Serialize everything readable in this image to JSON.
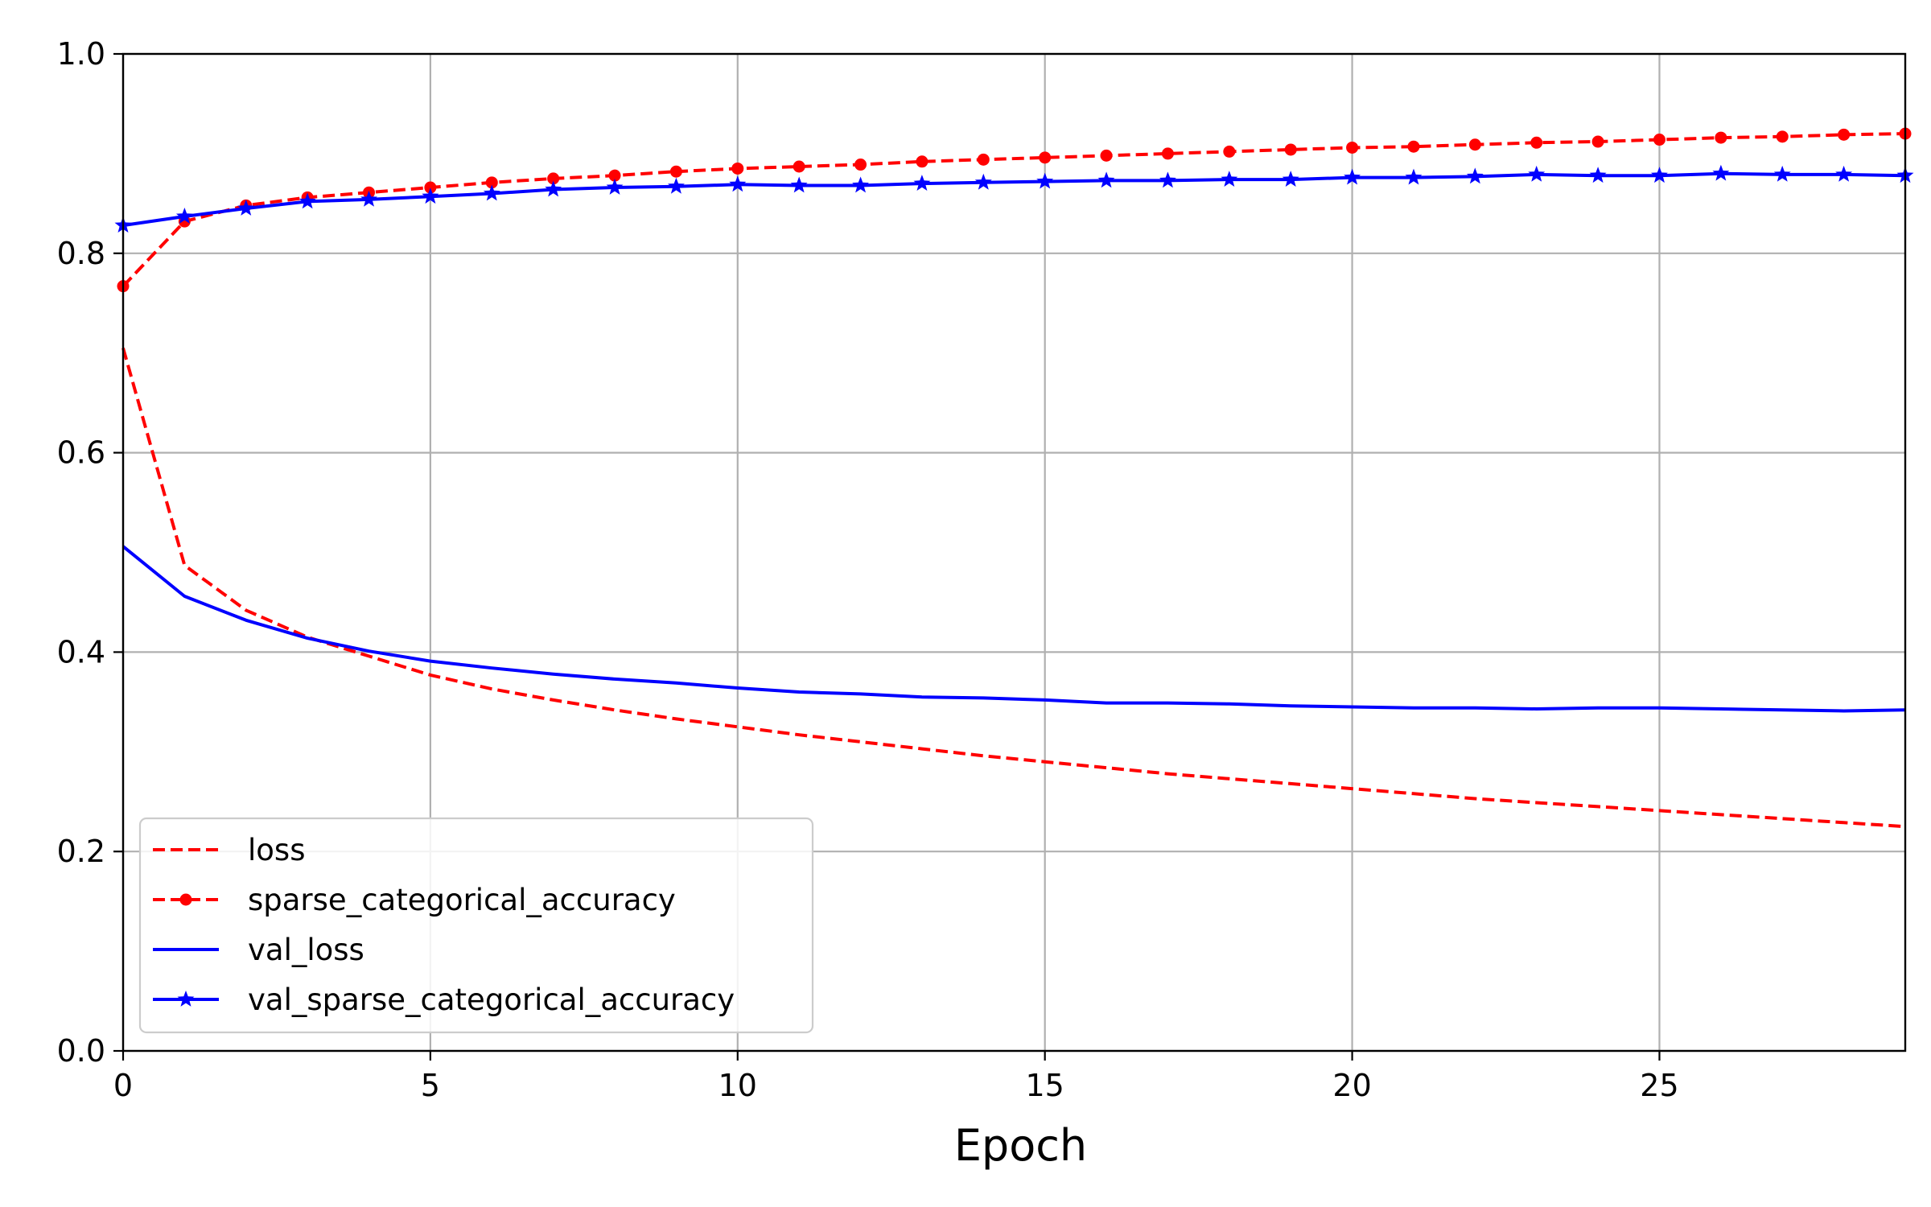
{
  "chart_data": {
    "type": "line",
    "title": "",
    "xlabel": "Epoch",
    "ylabel": "",
    "xlim": [
      0,
      29
    ],
    "ylim": [
      0,
      1
    ],
    "x_ticks": [
      0,
      5,
      10,
      15,
      20,
      25
    ],
    "y_ticks": [
      0.0,
      0.2,
      0.4,
      0.6,
      0.8,
      1.0
    ],
    "x_tick_labels": [
      "0",
      "5",
      "10",
      "15",
      "20",
      "25"
    ],
    "y_tick_labels": [
      "0.0",
      "0.2",
      "0.4",
      "0.6",
      "0.8",
      "1.0"
    ],
    "grid": true,
    "legend_position": "lower-left",
    "x": [
      0,
      1,
      2,
      3,
      4,
      5,
      6,
      7,
      8,
      9,
      10,
      11,
      12,
      13,
      14,
      15,
      16,
      17,
      18,
      19,
      20,
      21,
      22,
      23,
      24,
      25,
      26,
      27,
      28,
      29
    ],
    "series": [
      {
        "name": "loss",
        "color": "#ff0000",
        "line_style": "dashed",
        "marker": "none",
        "values": [
          0.705,
          0.487,
          0.442,
          0.415,
          0.396,
          0.377,
          0.363,
          0.352,
          0.342,
          0.333,
          0.325,
          0.317,
          0.31,
          0.303,
          0.296,
          0.29,
          0.284,
          0.278,
          0.273,
          0.268,
          0.263,
          0.258,
          0.253,
          0.249,
          0.245,
          0.241,
          0.237,
          0.233,
          0.229,
          0.225
        ]
      },
      {
        "name": "sparse_categorical_accuracy",
        "color": "#ff0000",
        "line_style": "dashed",
        "marker": "dot",
        "values": [
          0.767,
          0.832,
          0.848,
          0.856,
          0.861,
          0.866,
          0.871,
          0.875,
          0.878,
          0.882,
          0.885,
          0.887,
          0.889,
          0.892,
          0.894,
          0.896,
          0.898,
          0.9,
          0.902,
          0.904,
          0.906,
          0.907,
          0.909,
          0.911,
          0.912,
          0.914,
          0.916,
          0.917,
          0.919,
          0.92
        ]
      },
      {
        "name": "val_loss",
        "color": "#0000ff",
        "line_style": "solid",
        "marker": "none",
        "values": [
          0.506,
          0.456,
          0.432,
          0.414,
          0.401,
          0.391,
          0.384,
          0.378,
          0.373,
          0.369,
          0.364,
          0.36,
          0.358,
          0.355,
          0.354,
          0.352,
          0.349,
          0.349,
          0.348,
          0.346,
          0.345,
          0.344,
          0.344,
          0.343,
          0.344,
          0.344,
          0.343,
          0.342,
          0.341,
          0.342
        ]
      },
      {
        "name": "val_sparse_categorical_accuracy",
        "color": "#0000ff",
        "line_style": "solid",
        "marker": "star",
        "values": [
          0.828,
          0.837,
          0.845,
          0.852,
          0.854,
          0.857,
          0.86,
          0.864,
          0.866,
          0.867,
          0.869,
          0.868,
          0.868,
          0.87,
          0.871,
          0.872,
          0.873,
          0.873,
          0.874,
          0.874,
          0.876,
          0.876,
          0.877,
          0.879,
          0.878,
          0.878,
          0.88,
          0.879,
          0.879,
          0.878
        ]
      }
    ]
  }
}
